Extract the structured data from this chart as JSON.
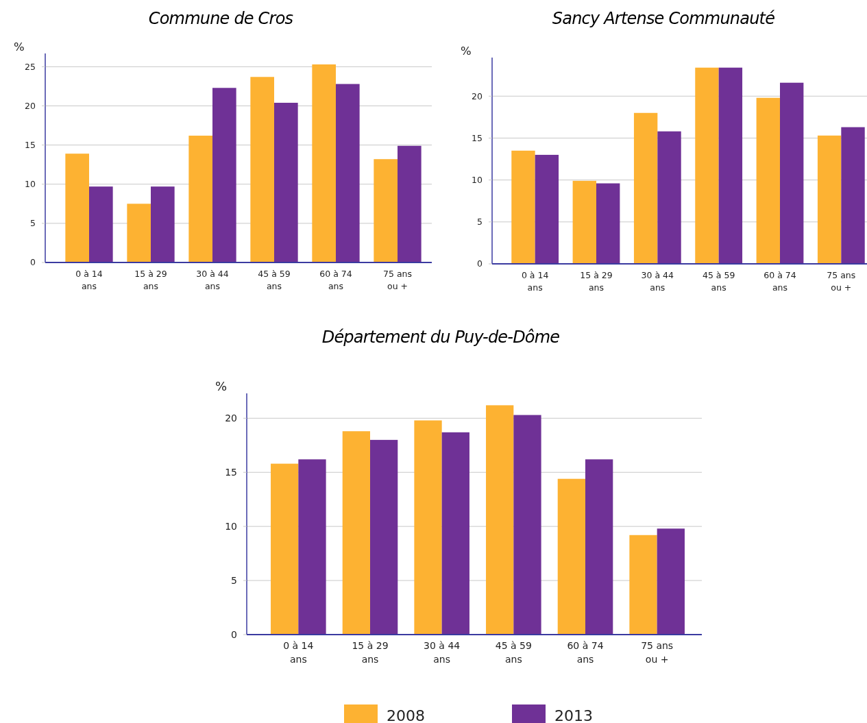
{
  "chart_data": [
    {
      "type": "bar",
      "title": "Commune de Cros",
      "ylabel": "%",
      "categories": [
        "0 à 14 ans",
        "15 à 29 ans",
        "30 à 44 ans",
        "45 à 59 ans",
        "60 à 74 ans",
        "75 ans ou +"
      ],
      "series": [
        {
          "color": "#fdb232",
          "values": [
            13.9,
            7.5,
            16.2,
            23.7,
            25.3,
            13.2
          ]
        },
        {
          "color": "#6f3196",
          "values": [
            9.7,
            9.7,
            22.3,
            20.4,
            22.8,
            14.9
          ]
        }
      ],
      "ylim": [
        0,
        26.7
      ],
      "yticks": [
        0,
        5,
        10,
        15,
        20,
        25
      ],
      "grid": "y",
      "legend": false
    },
    {
      "type": "bar",
      "title": "Sancy Artense Communauté",
      "ylabel": "%",
      "categories": [
        "0 à 14 ans",
        "15 à 29 ans",
        "30 à 44 ans",
        "45 à 59 ans",
        "60 à 74 ans",
        "75 ans ou +"
      ],
      "series": [
        {
          "color": "#fdb232",
          "values": [
            13.5,
            9.9,
            18.0,
            23.4,
            19.8,
            15.3
          ]
        },
        {
          "color": "#6f3196",
          "values": [
            13.0,
            9.6,
            15.8,
            23.4,
            21.6,
            16.3
          ]
        }
      ],
      "ylim": [
        0,
        24.6
      ],
      "yticks": [
        0,
        5,
        10,
        15,
        20
      ],
      "grid": "y",
      "legend": false
    },
    {
      "type": "bar",
      "title": "Département du Puy-de-Dôme",
      "ylabel": "%",
      "categories": [
        "0 à 14 ans",
        "15 à 29 ans",
        "30 à 44 ans",
        "45 à 59 ans",
        "60 à 74 ans",
        "75 ans ou +"
      ],
      "series": [
        {
          "name": "2008",
          "color": "#fdb232",
          "values": [
            15.8,
            18.8,
            19.8,
            21.2,
            14.4,
            9.2
          ]
        },
        {
          "name": "2013",
          "color": "#6f3196",
          "values": [
            16.2,
            18.0,
            18.7,
            20.3,
            16.2,
            9.8
          ]
        }
      ],
      "ylim": [
        0,
        22.3
      ],
      "yticks": [
        0,
        5,
        10,
        15,
        20
      ],
      "grid": "y",
      "legend": "bottom"
    }
  ]
}
